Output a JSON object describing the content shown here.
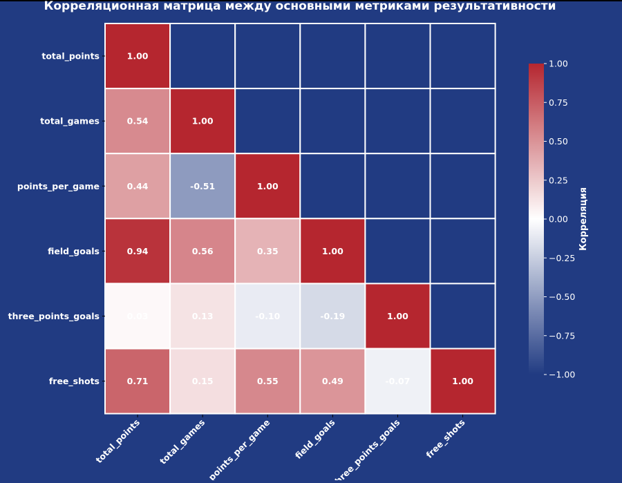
{
  "chart_data": {
    "type": "heatmap",
    "title": "Корреляционная матрица между основными метриками результативности",
    "variables": [
      "total_points",
      "total_games",
      "points_per_game",
      "field_goals",
      "three_points_goals",
      "free_shots"
    ],
    "values": [
      [
        1.0,
        null,
        null,
        null,
        null,
        null
      ],
      [
        0.54,
        1.0,
        null,
        null,
        null,
        null
      ],
      [
        0.44,
        -0.51,
        1.0,
        null,
        null,
        null
      ],
      [
        0.94,
        0.56,
        0.35,
        1.0,
        null,
        null
      ],
      [
        0.03,
        0.13,
        -0.1,
        -0.19,
        1.0,
        null
      ],
      [
        0.71,
        0.15,
        0.55,
        0.49,
        -0.07,
        1.0
      ]
    ],
    "mask": "upper-triangle",
    "colorbar": {
      "label": "Корреляция",
      "range": [
        -1,
        1
      ],
      "ticks": [
        "1.00",
        "0.75",
        "0.50",
        "0.25",
        "0.00",
        "−0.25",
        "−0.50",
        "−0.75",
        "−1.00"
      ],
      "colormap": "blue-white-red"
    },
    "colors": {
      "background": "#213b82",
      "positive": "#b5262f",
      "negative": "#213b82",
      "grid": "#ffffff"
    }
  }
}
